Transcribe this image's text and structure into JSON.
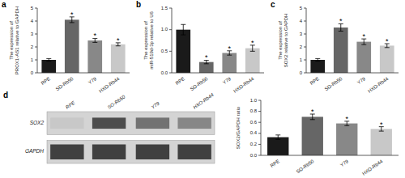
{
  "chart_data": [
    {
      "type": "bar",
      "title": "a",
      "ylabel": "The expression of\nPROX1-AS1 relative to GAPDH",
      "categories": [
        "RPE",
        "SO-Rb50",
        "Y79",
        "HXO-Rb44"
      ],
      "values": [
        1.0,
        4.1,
        2.5,
        2.2
      ],
      "errors": [
        0.1,
        0.22,
        0.15,
        0.12
      ],
      "colors": [
        "#1a1a1a",
        "#666666",
        "#888888",
        "#c8c8c8"
      ],
      "ylim": [
        0,
        5
      ],
      "yticks": [
        0,
        1,
        2,
        3,
        4,
        5
      ],
      "annotations": [
        {
          "category": "SO-Rb50",
          "text": "*"
        },
        {
          "category": "Y79",
          "text": "*"
        },
        {
          "category": "HXO-Rb44",
          "text": "*"
        }
      ]
    },
    {
      "type": "bar",
      "title": "b",
      "ylabel": "The expression of\nmiR-519d-3p relative to U6",
      "categories": [
        "RPE",
        "SO-Rb50",
        "Y79",
        "HXO-Rb44"
      ],
      "values": [
        1.0,
        0.25,
        0.46,
        0.57
      ],
      "errors": [
        0.12,
        0.04,
        0.05,
        0.07
      ],
      "colors": [
        "#1a1a1a",
        "#666666",
        "#888888",
        "#c8c8c8"
      ],
      "ylim": [
        0,
        1.5
      ],
      "yticks": [
        {
          "value": 0,
          "label": "0.0"
        },
        0.5,
        {
          "value": 1,
          "label": "1.0"
        },
        1.5
      ],
      "annotations": [
        {
          "category": "SO-Rb50",
          "text": "*"
        },
        {
          "category": "Y79",
          "text": "*"
        },
        {
          "category": "HXO-Rb44",
          "text": "*"
        }
      ]
    },
    {
      "type": "bar",
      "title": "c",
      "ylabel": "The expression of\nSOX2 relative to GAPDH",
      "categories": [
        "RPE",
        "SO-Rb50",
        "Y79",
        "HXO-Rb44"
      ],
      "values": [
        1.0,
        3.5,
        2.4,
        2.1
      ],
      "errors": [
        0.1,
        0.28,
        0.22,
        0.15
      ],
      "colors": [
        "#1a1a1a",
        "#666666",
        "#888888",
        "#c8c8c8"
      ],
      "ylim": [
        0,
        5
      ],
      "yticks": [
        0,
        1,
        2,
        3,
        4,
        5
      ],
      "annotations": [
        {
          "category": "SO-Rb50",
          "text": "*"
        },
        {
          "category": "Y79",
          "text": "*"
        },
        {
          "category": "HXO-Rb44",
          "text": "*"
        }
      ]
    },
    {
      "type": "blot",
      "title": "d",
      "rows": [
        "SOX2",
        "GAPDH"
      ],
      "columns": [
        "RPE",
        "SO-Rb50",
        "Y79",
        "HXO-Rb44"
      ],
      "values": [
        [
          0.25,
          0.82,
          0.65,
          0.55
        ],
        [
          0.88,
          0.88,
          0.88,
          0.88
        ]
      ],
      "color": "#d4d4d4"
    },
    {
      "type": "bar",
      "ylabel": "SOX2/GAPDH ratio",
      "categories": [
        "RPE",
        "SO-Rb50",
        "Y79",
        "HXO-Rb44"
      ],
      "values": [
        0.33,
        0.7,
        0.58,
        0.48
      ],
      "errors": [
        0.04,
        0.05,
        0.04,
        0.04
      ],
      "colors": [
        "#1a1a1a",
        "#666666",
        "#888888",
        "#c8c8c8"
      ],
      "ylim": [
        0,
        1
      ],
      "yticks": [
        {
          "value": 0,
          "label": "0.0"
        },
        0.2,
        0.4,
        0.6,
        0.8,
        {
          "value": 1,
          "label": "1.0"
        }
      ],
      "annotations": [
        {
          "category": "SO-Rb50",
          "text": "*"
        },
        {
          "category": "Y79",
          "text": "*"
        },
        {
          "category": "HXO-Rb44",
          "text": "*"
        }
      ]
    }
  ]
}
